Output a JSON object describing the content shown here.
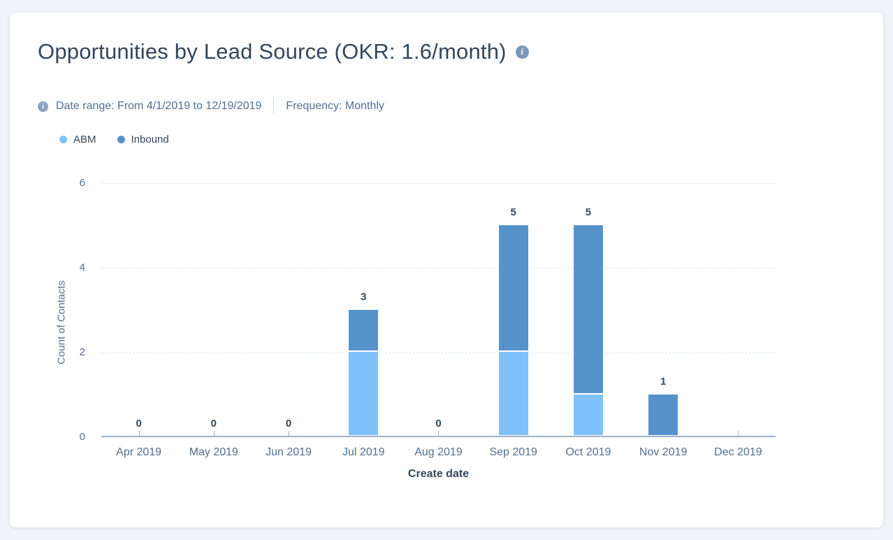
{
  "header": {
    "title": "Opportunities by Lead Source (OKR: 1.6/month)"
  },
  "meta": {
    "date_range": "Date range: From 4/1/2019 to 12/19/2019",
    "frequency": "Frequency: Monthly"
  },
  "colors": {
    "abm": "#7fc2fb",
    "inbound": "#5593ca",
    "axis_line": "#9fb3c9",
    "gridline": "#dde6ee",
    "text_dark": "#33475b",
    "text_muted": "#516f90",
    "card_background": "#ffffff",
    "page_background": "#f0f4f8"
  },
  "chart_data": {
    "type": "bar",
    "stacked": true,
    "title": "Opportunities by Lead Source (OKR: 1.6/month)",
    "categories": [
      "Apr 2019",
      "May 2019",
      "Jun 2019",
      "Jul 2019",
      "Aug 2019",
      "Sep 2019",
      "Oct 2019",
      "Nov 2019",
      "Dec 2019"
    ],
    "series": [
      {
        "name": "ABM",
        "color": "#7fc2fb",
        "values": [
          0,
          0,
          0,
          2,
          0,
          2,
          1,
          0,
          null
        ]
      },
      {
        "name": "Inbound",
        "color": "#5593ca",
        "values": [
          0,
          0,
          0,
          1,
          0,
          3,
          4,
          1,
          null
        ]
      }
    ],
    "totals": [
      0,
      0,
      0,
      3,
      0,
      5,
      5,
      1,
      null
    ],
    "show_total_labels": true,
    "xlabel": "Create date",
    "ylabel": "Count of Contacts",
    "ylim": [
      0,
      6
    ],
    "yticks": [
      0,
      2,
      4,
      6
    ],
    "grid": "horizontal-dashed",
    "legend_position": "top-left"
  }
}
